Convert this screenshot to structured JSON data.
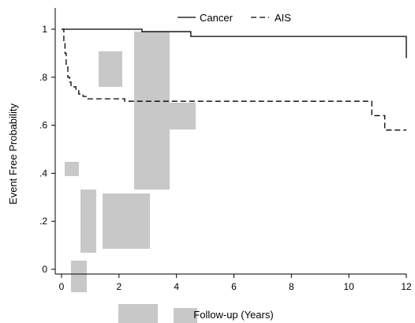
{
  "chart_data": {
    "type": "line",
    "title": "",
    "xlabel": "Follow-up (Years)",
    "ylabel": "Event Free Probability",
    "xlim": [
      0,
      12
    ],
    "ylim": [
      0,
      1
    ],
    "xticks": [
      0,
      2,
      4,
      6,
      8,
      10,
      12
    ],
    "xtick_labels": [
      "0",
      "2",
      "4",
      "6",
      "8",
      "10",
      "12"
    ],
    "yticks": [
      0,
      0.2,
      0.4,
      0.6,
      0.8,
      1
    ],
    "ytick_labels": [
      "0",
      ".2",
      ".4",
      ".6",
      ".8",
      "1"
    ],
    "grid": false,
    "legend_position": "top",
    "series": [
      {
        "name": "Cancer",
        "style": "solid",
        "steps": [
          [
            0,
            1.0
          ],
          [
            2.8,
            0.99
          ],
          [
            4.5,
            0.97
          ],
          [
            12.0,
            0.88
          ]
        ]
      },
      {
        "name": "AIS",
        "style": "dashed",
        "steps": [
          [
            0,
            1.0
          ],
          [
            0.08,
            0.95
          ],
          [
            0.12,
            0.9
          ],
          [
            0.16,
            0.85
          ],
          [
            0.22,
            0.8
          ],
          [
            0.28,
            0.78
          ],
          [
            0.33,
            0.76
          ],
          [
            0.5,
            0.75
          ],
          [
            0.6,
            0.73
          ],
          [
            0.75,
            0.72
          ],
          [
            0.9,
            0.71
          ],
          [
            2.2,
            0.7
          ],
          [
            10.8,
            0.64
          ],
          [
            11.25,
            0.58
          ]
        ],
        "end_x": 12.0
      }
    ]
  },
  "watermark": {
    "text": "script",
    "color": "#c8c8c8"
  }
}
